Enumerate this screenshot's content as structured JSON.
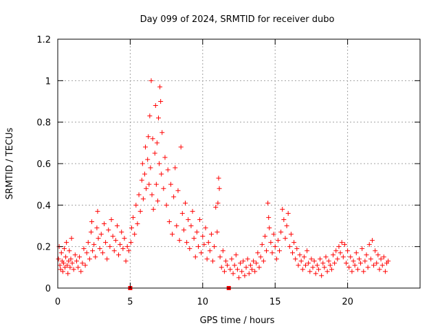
{
  "chart_data": {
    "type": "scatter",
    "title": "Day 099 of 2024, SRMTID for receiver dubo",
    "xlabel": "GPS time / hours",
    "ylabel": "SRMTID / TECUs",
    "xlim": [
      0,
      25
    ],
    "ylim": [
      0,
      1.2
    ],
    "xticks": [
      0,
      5,
      10,
      15,
      20
    ],
    "yticks": [
      0,
      0.2,
      0.4,
      0.6,
      0.8,
      1,
      1.2
    ],
    "ytick_labels": [
      "0",
      "0.2",
      "0.4",
      "0.6",
      "0.8",
      "1",
      "1.2"
    ],
    "grid": true,
    "marker": "plus",
    "color": "#ff0000",
    "series": [
      {
        "name": "SRMTID",
        "points": [
          [
            0.05,
            0.14
          ],
          [
            0.1,
            0.2
          ],
          [
            0.15,
            0.11
          ],
          [
            0.2,
            0.09
          ],
          [
            0.25,
            0.17
          ],
          [
            0.3,
            0.13
          ],
          [
            0.35,
            0.08
          ],
          [
            0.4,
            0.12
          ],
          [
            0.45,
            0.19
          ],
          [
            0.5,
            0.1
          ],
          [
            0.55,
            0.15
          ],
          [
            0.6,
            0.22
          ],
          [
            0.65,
            0.11
          ],
          [
            0.7,
            0.07
          ],
          [
            0.75,
            0.13
          ],
          [
            0.8,
            0.18
          ],
          [
            0.85,
            0.1
          ],
          [
            0.9,
            0.14
          ],
          [
            0.95,
            0.24
          ],
          [
            1.0,
            0.12
          ],
          [
            1.1,
            0.09
          ],
          [
            1.2,
            0.16
          ],
          [
            1.3,
            0.13
          ],
          [
            1.4,
            0.1
          ],
          [
            1.5,
            0.15
          ],
          [
            1.6,
            0.08
          ],
          [
            1.7,
            0.12
          ],
          [
            1.8,
            0.19
          ],
          [
            1.9,
            0.11
          ],
          [
            2.0,
            0.17
          ],
          [
            2.1,
            0.22
          ],
          [
            2.2,
            0.14
          ],
          [
            2.3,
            0.27
          ],
          [
            2.35,
            0.32
          ],
          [
            2.4,
            0.18
          ],
          [
            2.5,
            0.21
          ],
          [
            2.6,
            0.15
          ],
          [
            2.7,
            0.29
          ],
          [
            2.75,
            0.37
          ],
          [
            2.8,
            0.24
          ],
          [
            2.9,
            0.19
          ],
          [
            3.0,
            0.26
          ],
          [
            3.1,
            0.17
          ],
          [
            3.2,
            0.31
          ],
          [
            3.3,
            0.22
          ],
          [
            3.4,
            0.14
          ],
          [
            3.5,
            0.28
          ],
          [
            3.6,
            0.2
          ],
          [
            3.7,
            0.33
          ],
          [
            3.8,
            0.25
          ],
          [
            3.9,
            0.18
          ],
          [
            4.0,
            0.23
          ],
          [
            4.1,
            0.3
          ],
          [
            4.2,
            0.16
          ],
          [
            4.3,
            0.21
          ],
          [
            4.4,
            0.27
          ],
          [
            4.5,
            0.19
          ],
          [
            4.6,
            0.24
          ],
          [
            4.7,
            0.13
          ],
          [
            4.8,
            0.2
          ],
          [
            4.9,
            0.18
          ],
          [
            5.0,
            0.0
          ],
          [
            5.05,
            0.22
          ],
          [
            5.1,
            0.29
          ],
          [
            5.2,
            0.34
          ],
          [
            5.3,
            0.26
          ],
          [
            5.4,
            0.4
          ],
          [
            5.5,
            0.31
          ],
          [
            5.6,
            0.45
          ],
          [
            5.7,
            0.37
          ],
          [
            5.8,
            0.52
          ],
          [
            5.85,
            0.6
          ],
          [
            5.9,
            0.43
          ],
          [
            6.0,
            0.55
          ],
          [
            6.05,
            0.68
          ],
          [
            6.1,
            0.48
          ],
          [
            6.2,
            0.62
          ],
          [
            6.25,
            0.73
          ],
          [
            6.3,
            0.5
          ],
          [
            6.35,
            0.83
          ],
          [
            6.4,
            0.58
          ],
          [
            6.45,
            1.0
          ],
          [
            6.5,
            0.45
          ],
          [
            6.55,
            0.72
          ],
          [
            6.6,
            0.38
          ],
          [
            6.7,
            0.65
          ],
          [
            6.75,
            0.88
          ],
          [
            6.8,
            0.5
          ],
          [
            6.85,
            0.7
          ],
          [
            6.9,
            0.42
          ],
          [
            6.95,
            0.82
          ],
          [
            7.0,
            0.6
          ],
          [
            7.05,
            0.97
          ],
          [
            7.1,
            0.9
          ],
          [
            7.15,
            0.55
          ],
          [
            7.2,
            0.75
          ],
          [
            7.3,
            0.48
          ],
          [
            7.4,
            0.63
          ],
          [
            7.5,
            0.4
          ],
          [
            7.6,
            0.57
          ],
          [
            7.7,
            0.32
          ],
          [
            7.8,
            0.5
          ],
          [
            7.9,
            0.26
          ],
          [
            8.0,
            0.44
          ],
          [
            8.1,
            0.58
          ],
          [
            8.2,
            0.3
          ],
          [
            8.3,
            0.47
          ],
          [
            8.4,
            0.23
          ],
          [
            8.5,
            0.68
          ],
          [
            8.6,
            0.36
          ],
          [
            8.7,
            0.28
          ],
          [
            8.8,
            0.41
          ],
          [
            8.9,
            0.22
          ],
          [
            9.0,
            0.33
          ],
          [
            9.1,
            0.19
          ],
          [
            9.2,
            0.3
          ],
          [
            9.3,
            0.37
          ],
          [
            9.4,
            0.24
          ],
          [
            9.5,
            0.15
          ],
          [
            9.6,
            0.27
          ],
          [
            9.7,
            0.2
          ],
          [
            9.8,
            0.33
          ],
          [
            9.9,
            0.17
          ],
          [
            10.0,
            0.25
          ],
          [
            10.1,
            0.21
          ],
          [
            10.2,
            0.29
          ],
          [
            10.3,
            0.14
          ],
          [
            10.4,
            0.22
          ],
          [
            10.5,
            0.18
          ],
          [
            10.6,
            0.26
          ],
          [
            10.7,
            0.13
          ],
          [
            10.8,
            0.2
          ],
          [
            10.9,
            0.39
          ],
          [
            11.0,
            0.27
          ],
          [
            11.05,
            0.41
          ],
          [
            11.1,
            0.53
          ],
          [
            11.15,
            0.48
          ],
          [
            11.2,
            0.15
          ],
          [
            11.3,
            0.1
          ],
          [
            11.4,
            0.18
          ],
          [
            11.5,
            0.08
          ],
          [
            11.6,
            0.13
          ],
          [
            11.7,
            0.11
          ],
          [
            11.8,
            0.0
          ],
          [
            11.9,
            0.09
          ],
          [
            12.0,
            0.14
          ],
          [
            12.1,
            0.07
          ],
          [
            12.2,
            0.11
          ],
          [
            12.3,
            0.16
          ],
          [
            12.4,
            0.09
          ],
          [
            12.5,
            0.05
          ],
          [
            12.6,
            0.12
          ],
          [
            12.7,
            0.08
          ],
          [
            12.8,
            0.13
          ],
          [
            12.9,
            0.06
          ],
          [
            13.0,
            0.1
          ],
          [
            13.1,
            0.14
          ],
          [
            13.2,
            0.07
          ],
          [
            13.3,
            0.11
          ],
          [
            13.4,
            0.09
          ],
          [
            13.5,
            0.13
          ],
          [
            13.6,
            0.08
          ],
          [
            13.7,
            0.12
          ],
          [
            13.8,
            0.17
          ],
          [
            13.9,
            0.1
          ],
          [
            14.0,
            0.15
          ],
          [
            14.1,
            0.21
          ],
          [
            14.2,
            0.13
          ],
          [
            14.3,
            0.25
          ],
          [
            14.4,
            0.18
          ],
          [
            14.5,
            0.41
          ],
          [
            14.55,
            0.34
          ],
          [
            14.6,
            0.29
          ],
          [
            14.7,
            0.22
          ],
          [
            14.8,
            0.17
          ],
          [
            14.9,
            0.26
          ],
          [
            15.0,
            0.2
          ],
          [
            15.1,
            0.14
          ],
          [
            15.2,
            0.23
          ],
          [
            15.3,
            0.18
          ],
          [
            15.4,
            0.27
          ],
          [
            15.5,
            0.38
          ],
          [
            15.6,
            0.33
          ],
          [
            15.7,
            0.24
          ],
          [
            15.8,
            0.3
          ],
          [
            15.9,
            0.36
          ],
          [
            16.0,
            0.2
          ],
          [
            16.1,
            0.26
          ],
          [
            16.2,
            0.17
          ],
          [
            16.3,
            0.22
          ],
          [
            16.4,
            0.14
          ],
          [
            16.5,
            0.19
          ],
          [
            16.6,
            0.11
          ],
          [
            16.7,
            0.16
          ],
          [
            16.8,
            0.13
          ],
          [
            16.9,
            0.09
          ],
          [
            17.0,
            0.15
          ],
          [
            17.1,
            0.11
          ],
          [
            17.2,
            0.18
          ],
          [
            17.3,
            0.12
          ],
          [
            17.4,
            0.08
          ],
          [
            17.5,
            0.14
          ],
          [
            17.6,
            0.1
          ],
          [
            17.7,
            0.13
          ],
          [
            17.8,
            0.07
          ],
          [
            17.9,
            0.11
          ],
          [
            18.0,
            0.09
          ],
          [
            18.1,
            0.14
          ],
          [
            18.2,
            0.06
          ],
          [
            18.3,
            0.12
          ],
          [
            18.4,
            0.1
          ],
          [
            18.5,
            0.15
          ],
          [
            18.6,
            0.08
          ],
          [
            18.7,
            0.13
          ],
          [
            18.8,
            0.11
          ],
          [
            18.9,
            0.09
          ],
          [
            19.0,
            0.16
          ],
          [
            19.1,
            0.12
          ],
          [
            19.2,
            0.18
          ],
          [
            19.3,
            0.14
          ],
          [
            19.4,
            0.2
          ],
          [
            19.5,
            0.17
          ],
          [
            19.6,
            0.22
          ],
          [
            19.7,
            0.15
          ],
          [
            19.8,
            0.21
          ],
          [
            19.9,
            0.12
          ],
          [
            20.0,
            0.18
          ],
          [
            20.1,
            0.1
          ],
          [
            20.2,
            0.15
          ],
          [
            20.3,
            0.08
          ],
          [
            20.4,
            0.13
          ],
          [
            20.5,
            0.11
          ],
          [
            20.6,
            0.17
          ],
          [
            20.7,
            0.09
          ],
          [
            20.8,
            0.14
          ],
          [
            20.9,
            0.12
          ],
          [
            21.0,
            0.19
          ],
          [
            21.1,
            0.08
          ],
          [
            21.2,
            0.13
          ],
          [
            21.3,
            0.16
          ],
          [
            21.4,
            0.1
          ],
          [
            21.5,
            0.21
          ],
          [
            21.6,
            0.14
          ],
          [
            21.7,
            0.23
          ],
          [
            21.8,
            0.11
          ],
          [
            21.9,
            0.18
          ],
          [
            22.0,
            0.12
          ],
          [
            22.1,
            0.16
          ],
          [
            22.2,
            0.09
          ],
          [
            22.3,
            0.14
          ],
          [
            22.4,
            0.11
          ],
          [
            22.5,
            0.15
          ],
          [
            22.6,
            0.08
          ],
          [
            22.7,
            0.12
          ],
          [
            22.8,
            0.13
          ]
        ]
      }
    ]
  }
}
